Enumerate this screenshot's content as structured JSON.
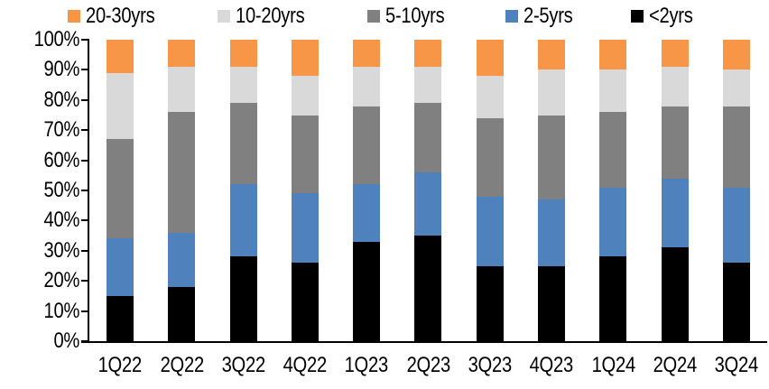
{
  "chart_data": {
    "type": "bar",
    "variant": "100-percent-stacked-column",
    "title": "",
    "xlabel": "",
    "ylabel": "",
    "grid": "off",
    "legend_position": "top",
    "legend_order": [
      "20-30yrs",
      "10-20yrs",
      "5-10yrs",
      "2-5yrs",
      "<2yrs"
    ],
    "categories": [
      "1Q22",
      "2Q22",
      "3Q22",
      "4Q22",
      "1Q23",
      "2Q23",
      "3Q23",
      "4Q23",
      "1Q24",
      "2Q24",
      "3Q24"
    ],
    "series": [
      {
        "name": "<2yrs",
        "color": "#000000",
        "values": [
          15,
          18,
          28,
          26,
          33,
          35,
          25,
          25,
          28,
          31,
          26
        ]
      },
      {
        "name": "2-5yrs",
        "color": "#4F81BD",
        "values": [
          19,
          18,
          24,
          23,
          19,
          21,
          23,
          22,
          23,
          23,
          25
        ]
      },
      {
        "name": "5-10yrs",
        "color": "#808080",
        "values": [
          33,
          40,
          27,
          26,
          26,
          23,
          26,
          28,
          25,
          24,
          27
        ]
      },
      {
        "name": "10-20yrs",
        "color": "#D9D9D9",
        "values": [
          22,
          15,
          12,
          13,
          13,
          12,
          14,
          15,
          14,
          13,
          12
        ]
      },
      {
        "name": "20-30yrs",
        "color": "#F79646",
        "values": [
          11,
          9,
          9,
          12,
          9,
          9,
          12,
          10,
          10,
          9,
          10
        ]
      }
    ],
    "y_axis": {
      "min": 0,
      "max": 100,
      "step": 10,
      "unit": "%",
      "ticks": [
        "0%",
        "10%",
        "20%",
        "30%",
        "40%",
        "50%",
        "60%",
        "70%",
        "80%",
        "90%",
        "100%"
      ]
    }
  }
}
